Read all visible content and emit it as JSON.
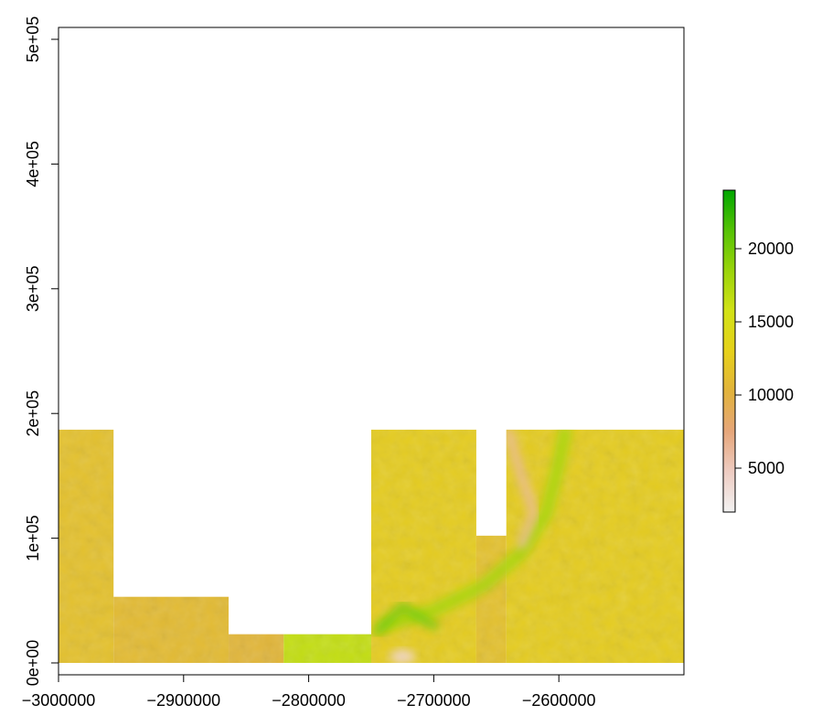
{
  "chart_data": {
    "type": "heatmap",
    "title": "",
    "xlabel": "",
    "ylabel": "",
    "xlim": [
      -3000000,
      -2500000
    ],
    "ylim": [
      0,
      500000
    ],
    "x_ticks": [
      {
        "value": -3000000,
        "label": "−3000000"
      },
      {
        "value": -2900000,
        "label": "−2900000"
      },
      {
        "value": -2800000,
        "label": "−2800000"
      },
      {
        "value": -2700000,
        "label": "−2700000"
      },
      {
        "value": -2600000,
        "label": "−2600000"
      }
    ],
    "y_ticks": [
      {
        "value": 0,
        "label": "0e+00"
      },
      {
        "value": 100000,
        "label": "1e+05"
      },
      {
        "value": 200000,
        "label": "2e+05"
      },
      {
        "value": 300000,
        "label": "3e+05"
      },
      {
        "value": 400000,
        "label": "4e+05"
      },
      {
        "value": 500000,
        "label": "5e+05"
      }
    ],
    "raster_extent": {
      "x": [
        -3000000,
        -2500000
      ],
      "y": [
        0,
        187000
      ]
    },
    "data_blocks": [
      {
        "x": [
          -3000000,
          -2956000
        ],
        "y": [
          0,
          187000
        ],
        "value": 11500
      },
      {
        "x": [
          -2956000,
          -2864000
        ],
        "y": [
          0,
          53000
        ],
        "value": 11000
      },
      {
        "x": [
          -2864000,
          -2820000
        ],
        "y": [
          0,
          23000
        ],
        "value": 10500
      },
      {
        "x": [
          -2820000,
          -2750000
        ],
        "y": [
          0,
          23000
        ],
        "value": 16500
      },
      {
        "x": [
          -2750000,
          -2666000
        ],
        "y": [
          0,
          187000
        ],
        "value": 12500
      },
      {
        "x": [
          -2666000,
          -2642000
        ],
        "y": [
          0,
          102000
        ],
        "value": 11500
      },
      {
        "x": [
          -2642000,
          -2500000
        ],
        "y": [
          0,
          187000
        ],
        "value": 12500
      }
    ],
    "features": [
      {
        "kind": "green-band",
        "points": [
          [
            -2740000,
            30000
          ],
          [
            -2700000,
            42000
          ],
          [
            -2660000,
            62000
          ],
          [
            -2630000,
            88000
          ],
          [
            -2610000,
            120000
          ],
          [
            -2600000,
            160000
          ],
          [
            -2595000,
            185000
          ]
        ],
        "value": 18000
      },
      {
        "kind": "green-ridge",
        "points": [
          [
            -2745000,
            25000
          ],
          [
            -2725000,
            45000
          ],
          [
            -2700000,
            30000
          ]
        ],
        "value": 20000
      },
      {
        "kind": "pink-valley",
        "points": [
          [
            -2640000,
            185000
          ],
          [
            -2630000,
            150000
          ],
          [
            -2620000,
            120000
          ],
          [
            -2630000,
            95000
          ]
        ],
        "value": 6000
      },
      {
        "kind": "pink-spot",
        "points": [
          [
            -2725000,
            5000
          ]
        ],
        "value": 4000
      }
    ],
    "colorbar": {
      "range": [
        2000,
        24000
      ],
      "ticks": [
        {
          "value": 5000,
          "label": "5000"
        },
        {
          "value": 10000,
          "label": "10000"
        },
        {
          "value": 15000,
          "label": "15000"
        },
        {
          "value": 20000,
          "label": "20000"
        }
      ],
      "colors": [
        "#f2f2f2",
        "#eeccc2",
        "#e6a67a",
        "#e2b33c",
        "#e6d11a",
        "#d2e216",
        "#9ad40a",
        "#55c205",
        "#00a600"
      ]
    },
    "grid": false,
    "legend": "right"
  }
}
